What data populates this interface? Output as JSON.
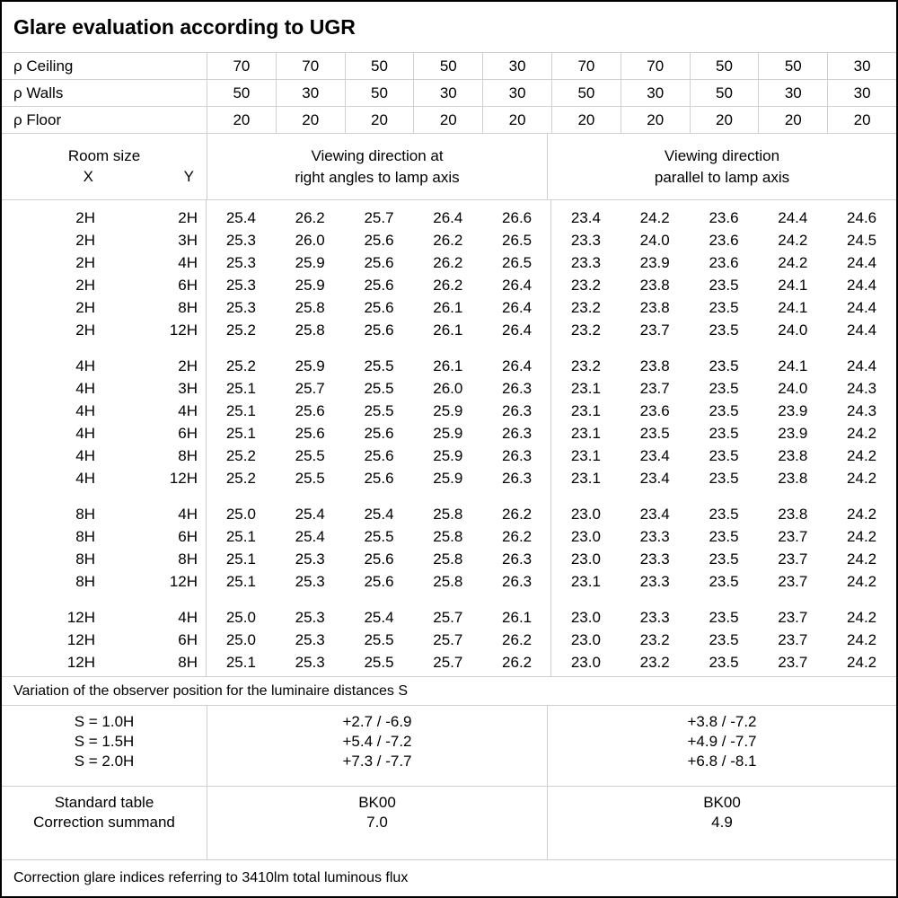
{
  "title": "Glare evaluation according to UGR",
  "reflectance": {
    "ceiling_label": "ρ Ceiling",
    "walls_label": "ρ Walls",
    "floor_label": "ρ Floor",
    "ceiling": [
      "70",
      "70",
      "50",
      "50",
      "30",
      "70",
      "70",
      "50",
      "50",
      "30"
    ],
    "walls": [
      "50",
      "30",
      "50",
      "30",
      "30",
      "50",
      "30",
      "50",
      "30",
      "30"
    ],
    "floor": [
      "20",
      "20",
      "20",
      "20",
      "20",
      "20",
      "20",
      "20",
      "20",
      "20"
    ]
  },
  "header": {
    "room_size": "Room size",
    "x": "X",
    "y": "Y",
    "left_line1": "Viewing direction at",
    "left_line2": "right angles to lamp axis",
    "right_line1": "Viewing direction",
    "right_line2": "parallel to lamp axis"
  },
  "ugr_table": {
    "blocks": [
      {
        "rows": [
          {
            "x": "2H",
            "y": "2H",
            "values": [
              "25.4",
              "26.2",
              "25.7",
              "26.4",
              "26.6",
              "23.4",
              "24.2",
              "23.6",
              "24.4",
              "24.6"
            ]
          },
          {
            "x": "2H",
            "y": "3H",
            "values": [
              "25.3",
              "26.0",
              "25.6",
              "26.2",
              "26.5",
              "23.3",
              "24.0",
              "23.6",
              "24.2",
              "24.5"
            ]
          },
          {
            "x": "2H",
            "y": "4H",
            "values": [
              "25.3",
              "25.9",
              "25.6",
              "26.2",
              "26.5",
              "23.3",
              "23.9",
              "23.6",
              "24.2",
              "24.4"
            ]
          },
          {
            "x": "2H",
            "y": "6H",
            "values": [
              "25.3",
              "25.9",
              "25.6",
              "26.2",
              "26.4",
              "23.2",
              "23.8",
              "23.5",
              "24.1",
              "24.4"
            ]
          },
          {
            "x": "2H",
            "y": "8H",
            "values": [
              "25.3",
              "25.8",
              "25.6",
              "26.1",
              "26.4",
              "23.2",
              "23.8",
              "23.5",
              "24.1",
              "24.4"
            ]
          },
          {
            "x": "2H",
            "y": "12H",
            "values": [
              "25.2",
              "25.8",
              "25.6",
              "26.1",
              "26.4",
              "23.2",
              "23.7",
              "23.5",
              "24.0",
              "24.4"
            ]
          }
        ]
      },
      {
        "rows": [
          {
            "x": "4H",
            "y": "2H",
            "values": [
              "25.2",
              "25.9",
              "25.5",
              "26.1",
              "26.4",
              "23.2",
              "23.8",
              "23.5",
              "24.1",
              "24.4"
            ]
          },
          {
            "x": "4H",
            "y": "3H",
            "values": [
              "25.1",
              "25.7",
              "25.5",
              "26.0",
              "26.3",
              "23.1",
              "23.7",
              "23.5",
              "24.0",
              "24.3"
            ]
          },
          {
            "x": "4H",
            "y": "4H",
            "values": [
              "25.1",
              "25.6",
              "25.5",
              "25.9",
              "26.3",
              "23.1",
              "23.6",
              "23.5",
              "23.9",
              "24.3"
            ]
          },
          {
            "x": "4H",
            "y": "6H",
            "values": [
              "25.1",
              "25.6",
              "25.6",
              "25.9",
              "26.3",
              "23.1",
              "23.5",
              "23.5",
              "23.9",
              "24.2"
            ]
          },
          {
            "x": "4H",
            "y": "8H",
            "values": [
              "25.2",
              "25.5",
              "25.6",
              "25.9",
              "26.3",
              "23.1",
              "23.4",
              "23.5",
              "23.8",
              "24.2"
            ]
          },
          {
            "x": "4H",
            "y": "12H",
            "values": [
              "25.2",
              "25.5",
              "25.6",
              "25.9",
              "26.3",
              "23.1",
              "23.4",
              "23.5",
              "23.8",
              "24.2"
            ]
          }
        ]
      },
      {
        "rows": [
          {
            "x": "8H",
            "y": "4H",
            "values": [
              "25.0",
              "25.4",
              "25.4",
              "25.8",
              "26.2",
              "23.0",
              "23.4",
              "23.5",
              "23.8",
              "24.2"
            ]
          },
          {
            "x": "8H",
            "y": "6H",
            "values": [
              "25.1",
              "25.4",
              "25.5",
              "25.8",
              "26.2",
              "23.0",
              "23.3",
              "23.5",
              "23.7",
              "24.2"
            ]
          },
          {
            "x": "8H",
            "y": "8H",
            "values": [
              "25.1",
              "25.3",
              "25.6",
              "25.8",
              "26.3",
              "23.0",
              "23.3",
              "23.5",
              "23.7",
              "24.2"
            ]
          },
          {
            "x": "8H",
            "y": "12H",
            "values": [
              "25.1",
              "25.3",
              "25.6",
              "25.8",
              "26.3",
              "23.1",
              "23.3",
              "23.5",
              "23.7",
              "24.2"
            ]
          }
        ]
      },
      {
        "rows": [
          {
            "x": "12H",
            "y": "4H",
            "values": [
              "25.0",
              "25.3",
              "25.4",
              "25.7",
              "26.1",
              "23.0",
              "23.3",
              "23.5",
              "23.7",
              "24.2"
            ]
          },
          {
            "x": "12H",
            "y": "6H",
            "values": [
              "25.0",
              "25.3",
              "25.5",
              "25.7",
              "26.2",
              "23.0",
              "23.2",
              "23.5",
              "23.7",
              "24.2"
            ]
          },
          {
            "x": "12H",
            "y": "8H",
            "values": [
              "25.1",
              "25.3",
              "25.5",
              "25.7",
              "26.2",
              "23.0",
              "23.2",
              "23.5",
              "23.7",
              "24.2"
            ]
          }
        ]
      }
    ]
  },
  "variation_note": "Variation of the observer position for the luminaire distances S",
  "spacing_section": {
    "rows": [
      {
        "label": "S = 1.0H",
        "right_angles": "+2.7 / -6.9",
        "parallel": "+3.8 / -7.2"
      },
      {
        "label": "S = 1.5H",
        "right_angles": "+5.4 / -7.2",
        "parallel": "+4.9 / -7.7"
      },
      {
        "label": "S = 2.0H",
        "right_angles": "+7.3 / -7.7",
        "parallel": "+6.8 / -8.1"
      }
    ]
  },
  "summary_section": {
    "rows": [
      {
        "label": "Standard table",
        "right_angles": "BK00",
        "parallel": "BK00"
      },
      {
        "label": "Correction summand",
        "right_angles": "7.0",
        "parallel": "4.9"
      }
    ]
  },
  "footer_note": "Correction glare indices referring to 3410lm total luminous flux",
  "colors": {
    "background": "#ffffff",
    "text": "#000000",
    "grid_line": "#d0d0d0",
    "border": "#000000"
  }
}
